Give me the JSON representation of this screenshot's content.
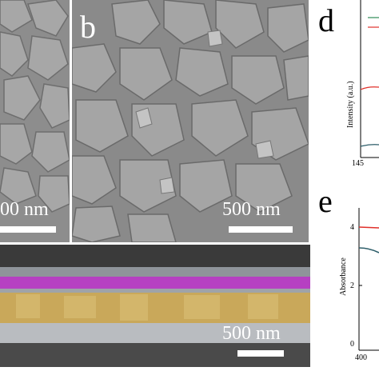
{
  "panels": {
    "a": {
      "label": "",
      "scale_text": "00 nm"
    },
    "b": {
      "label": "b",
      "scale_text": "500 nm"
    },
    "cross_section": {
      "scale_text": "500 nm"
    },
    "d": {
      "label": "d",
      "ylabel": "Intensity (a.u.)",
      "x_tick": "145"
    },
    "e": {
      "label": "e",
      "ylabel": "Absorbance",
      "y_ticks": [
        "4",
        "2",
        "0"
      ],
      "x_tick": "400"
    }
  },
  "colors": {
    "sem_grain": "#9a9a9a",
    "layer_magenta": "#c23fcf",
    "layer_gold": "#c9a85a",
    "layer_light": "#b9bcc0",
    "line_red": "#e0302a",
    "line_teal": "#2e5e6a"
  }
}
